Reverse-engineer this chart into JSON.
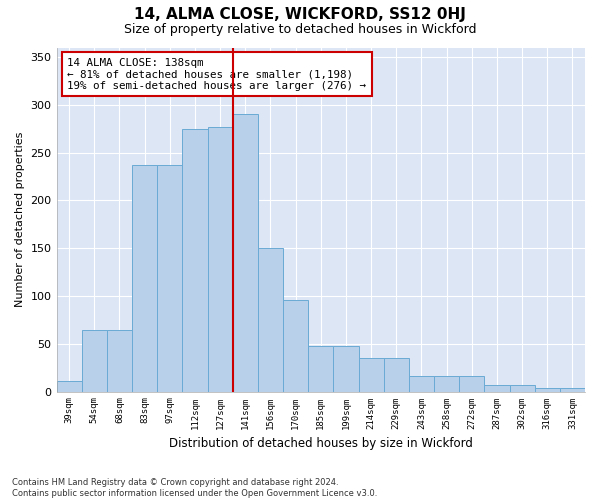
{
  "title": "14, ALMA CLOSE, WICKFORD, SS12 0HJ",
  "subtitle": "Size of property relative to detached houses in Wickford",
  "xlabel": "Distribution of detached houses by size in Wickford",
  "ylabel": "Number of detached properties",
  "bar_labels": [
    "39sqm",
    "54sqm",
    "68sqm",
    "83sqm",
    "97sqm",
    "112sqm",
    "127sqm",
    "141sqm",
    "156sqm",
    "170sqm",
    "185sqm",
    "199sqm",
    "214sqm",
    "229sqm",
    "243sqm",
    "258sqm",
    "272sqm",
    "287sqm",
    "302sqm",
    "316sqm",
    "331sqm"
  ],
  "bar_heights": [
    11,
    64,
    64,
    237,
    237,
    275,
    277,
    290,
    150,
    96,
    48,
    48,
    35,
    35,
    16,
    16,
    16,
    7,
    7,
    4,
    4
  ],
  "bar_color": "#b8d0ea",
  "bar_edge_color": "#6aaad4",
  "vline_color": "#cc0000",
  "vline_pos": 6.5,
  "annotation_text": "14 ALMA CLOSE: 138sqm\n← 81% of detached houses are smaller (1,198)\n19% of semi-detached houses are larger (276) →",
  "annotation_box_edgecolor": "#cc0000",
  "ylim": [
    0,
    360
  ],
  "yticks": [
    0,
    50,
    100,
    150,
    200,
    250,
    300,
    350
  ],
  "footer_text": "Contains HM Land Registry data © Crown copyright and database right 2024.\nContains public sector information licensed under the Open Government Licence v3.0.",
  "fig_bg_color": "#ffffff",
  "plot_bg_color": "#dce6f5",
  "grid_color": "#ffffff"
}
